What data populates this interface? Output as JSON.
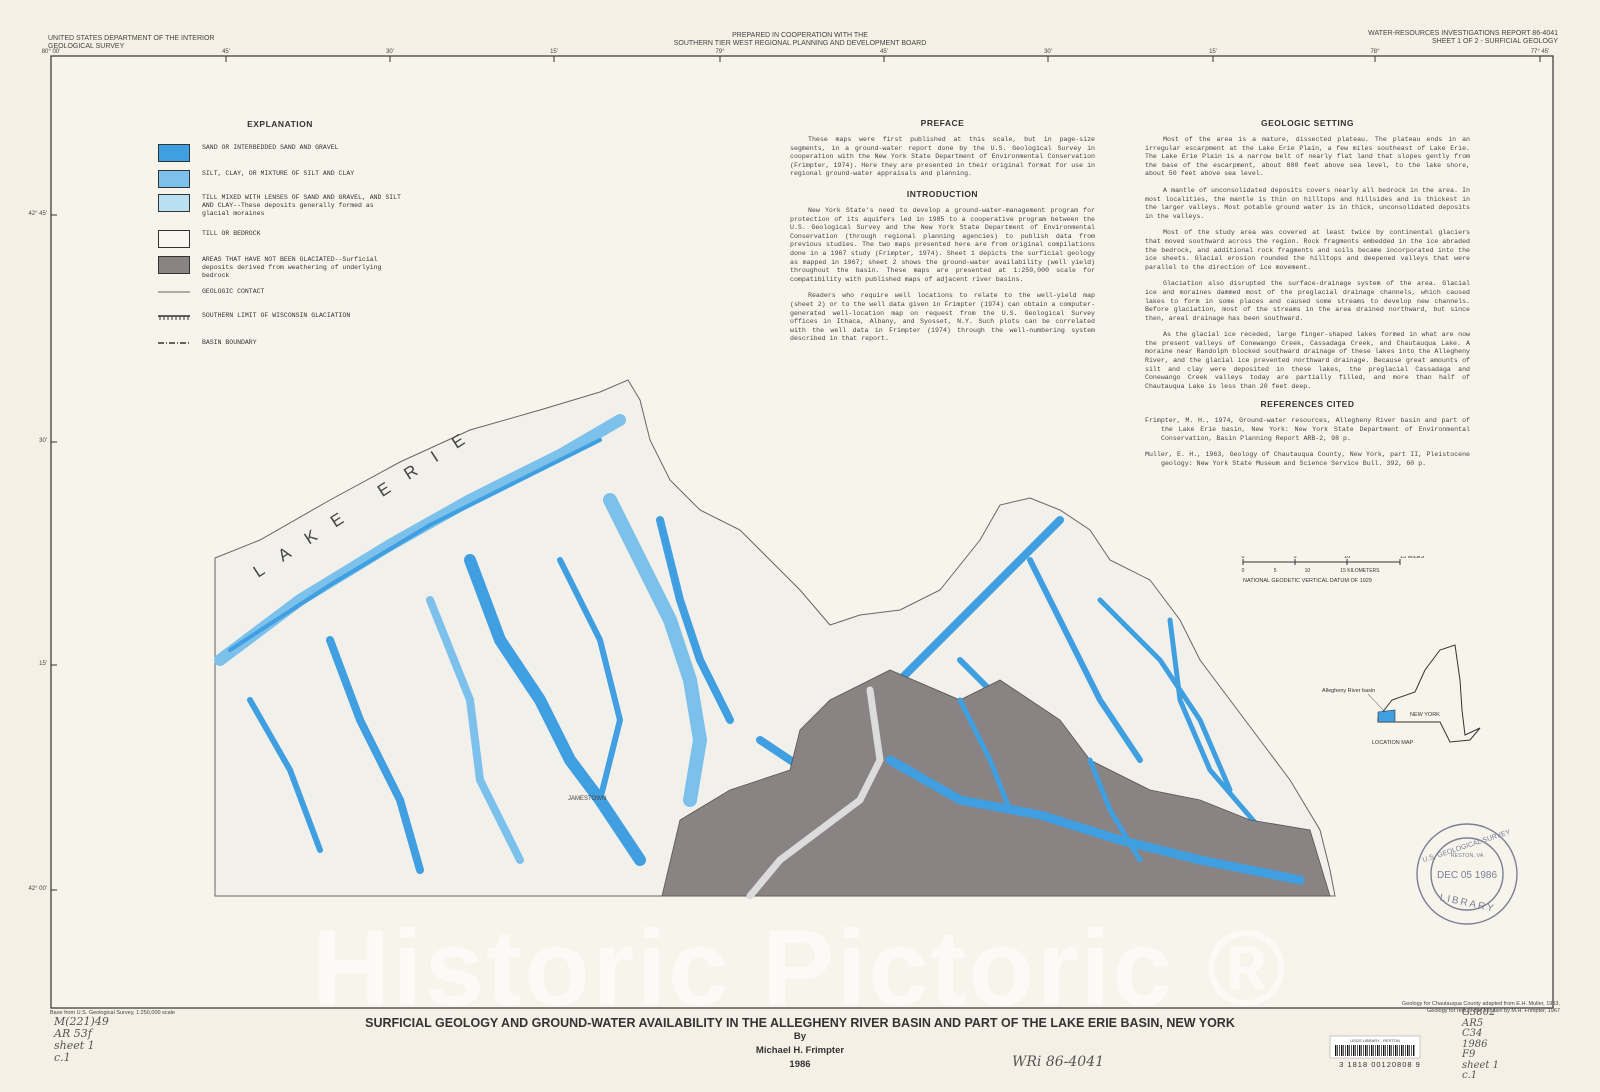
{
  "header": {
    "left": [
      "UNITED STATES DEPARTMENT OF THE INTERIOR",
      "GEOLOGICAL SURVEY"
    ],
    "center": [
      "PREPARED IN COOPERATION WITH THE",
      "SOUTHERN TIER WEST REGIONAL PLANNING AND DEVELOPMENT BOARD"
    ],
    "right": [
      "WATER-RESOURCES INVESTIGATIONS REPORT 86-4041",
      "SHEET 1 OF 2 - SURFICIAL GEOLOGY"
    ]
  },
  "top_ticks": [
    "80° 00'",
    "45'",
    "30'",
    "15'",
    "79°",
    "45'",
    "30'",
    "15'",
    "78°",
    "77° 45'"
  ],
  "left_ticks": [
    "42° 45'",
    "30'",
    "15'",
    "42° 00'"
  ],
  "explanation": {
    "title": "EXPLANATION",
    "units": [
      {
        "label": "SAND OR INTERBEDDED SAND AND GRAVEL",
        "color": "#3f9fe0"
      },
      {
        "label": "SILT, CLAY, OR MIXTURE OF SILT AND CLAY",
        "color": "#7cc0ec"
      },
      {
        "label": "TILL MIXED WITH LENSES OF SAND AND GRAVEL, AND SILT AND CLAY--These deposits generally formed as glacial moraines",
        "color": "#b9dff2"
      },
      {
        "label": "TILL OR BEDROCK",
        "color": "#f8f6f0"
      },
      {
        "label": "AREAS THAT HAVE NOT BEEN GLACIATED--Surficial deposits derived from weathering of underlying bedrock",
        "color": "#8a8384"
      }
    ],
    "line_symbols": [
      "GEOLOGIC CONTACT",
      "SOUTHERN LIMIT OF WISCONSIN GLACIATION",
      "BASIN BOUNDARY"
    ]
  },
  "preface": {
    "title": "PREFACE",
    "paragraphs": [
      "These maps were first published at this scale, but in page-size segments, in a ground-water report done by the U.S. Geological Survey in cooperation with the New York State Department of Environmental Conservation (Frimpter, 1974). Here they are presented in their original format for use in regional ground-water appraisals and planning."
    ]
  },
  "introduction": {
    "title": "INTRODUCTION",
    "paragraphs": [
      "New York State's need to develop a ground-water-management program for protection of its aquifers led in 1985 to a cooperative program between the U.S. Geological Survey and the New York State Department of Environmental Conservation (through regional planning agencies) to publish data from previous studies. The two maps presented here are from original compilations done in a 1967 study (Frimpter, 1974). Sheet 1 depicts the surficial geology as mapped in 1967; sheet 2 shows the ground-water availability (well yield) throughout the basin. These maps are presented at 1:250,000 scale for compatibility with published maps of adjacent river basins.",
      "Readers who require well locations to relate to the well-yield map (sheet 2) or to the well data given in Frimpter (1974) can obtain a computer-generated well-location map on request from the U.S. Geological Survey offices in Ithaca, Albany, and Syosset, N.Y. Such plots can be correlated with the well data in Frimpter (1974) through the well-numbering system described in that report."
    ]
  },
  "geologic_setting": {
    "title": "GEOLOGIC SETTING",
    "paragraphs": [
      "Most of the area is a mature, dissected plateau. The plateau ends in an irregular escarpment at the Lake Erie Plain, a few miles southeast of Lake Erie. The Lake Erie Plain is a narrow belt of nearly flat land that slopes gently from the base of the escarpment, about 800 feet above sea level, to the lake shore, about 50 feet above sea level.",
      "A mantle of unconsolidated deposits covers nearly all bedrock in the area. In most localities, the mantle is thin on hilltops and hillsides and is thickest in the larger valleys. Most potable ground water is in thick, unconsolidated deposits in the valleys.",
      "Most of the study area was covered at least twice by continental glaciers that moved southward across the region. Rock fragments embedded in the ice abraded the bedrock, and additional rock fragments and soils became incorporated into the ice sheets. Glacial erosion rounded the hilltops and deepened valleys that were parallel to the direction of ice movement.",
      "Glaciation also disrupted the surface-drainage system of the area. Glacial ice and moraines dammed most of the preglacial drainage channels, which caused lakes to form in some places and caused some streams to develop new channels. Before glaciation, most of the streams in the area drained northward, but since then, areal drainage has been southward.",
      "As the glacial ice receded, large finger-shaped lakes formed in what are now the present valleys of Conewango Creek, Cassadaga Creek, and Chautauqua Lake. A moraine near Randolph blocked southward drainage of these lakes into the Allegheny River, and the glacial ice prevented northward drainage. Because great amounts of silt and clay were deposited in these lakes, the preglacial Cassadaga and Conewango Creek valleys today are partially filled, and more than half of Chautauqua Lake is less than 20 feet deep."
    ]
  },
  "references": {
    "title": "REFERENCES CITED",
    "items": [
      "Frimpter, M. H., 1974, Ground-water resources, Allegheny River basin and part of the Lake Erie basin, New York: New York State Department of Environmental Conservation, Basin Planning Report ARB-2, 98 p.",
      "Muller, E. H., 1963, Geology of Chautauqua County, New York, part II, Pleistocene geology: New York State Museum and Science Service Bull. 392, 60 p."
    ]
  },
  "map": {
    "lake_label": "LAKE ERIE",
    "city_label": "JAMESTOWN"
  },
  "scale": {
    "mile_ticks": [
      "0",
      "5",
      "10",
      "15 MILES"
    ],
    "km_ticks": [
      "0",
      "5",
      "10",
      "15 KILOMETERS"
    ],
    "datum": "NATIONAL GEODETIC VERTICAL DATUM OF 1929"
  },
  "location_map": {
    "basin_label": "Allegheny River basin",
    "state_label": "NEW YORK",
    "title": "LOCATION MAP"
  },
  "stamp": {
    "top": "U.S. GEOLOGICAL SURVEY",
    "place": "RESTON, VA",
    "date": "DEC 05 1986",
    "bottom": "LIBRARY"
  },
  "footer": {
    "base_note": "Base from U.S. Geological Survey, 1:250,000 scale",
    "geology_notes": [
      "Geology for Chautauqua County adapted from E.H. Muller, 1963.",
      "Geology for remainder of basin by M.H. Frimpter, 1967"
    ],
    "title": "SURFICIAL GEOLOGY AND GROUND-WATER AVAILABILITY IN THE ALLEGHENY RIVER BASIN AND PART OF THE LAKE ERIE BASIN, NEW YORK",
    "by": "By",
    "author": "Michael H. Frimpter",
    "year": "1986",
    "barcode_label": "USGS LIBRARY - RESTON",
    "barcode_number": "3 1818 00120808 9"
  },
  "handwritten": {
    "left": [
      "M(221)49",
      "AR 53f",
      "sheet 1",
      "c.1"
    ],
    "center": "WRi 86-4041",
    "right": [
      "G3802",
      "AR5",
      "C34",
      "1986",
      "F9",
      "sheet 1",
      "c.1"
    ]
  },
  "watermark": "Historic Pictoric ®"
}
